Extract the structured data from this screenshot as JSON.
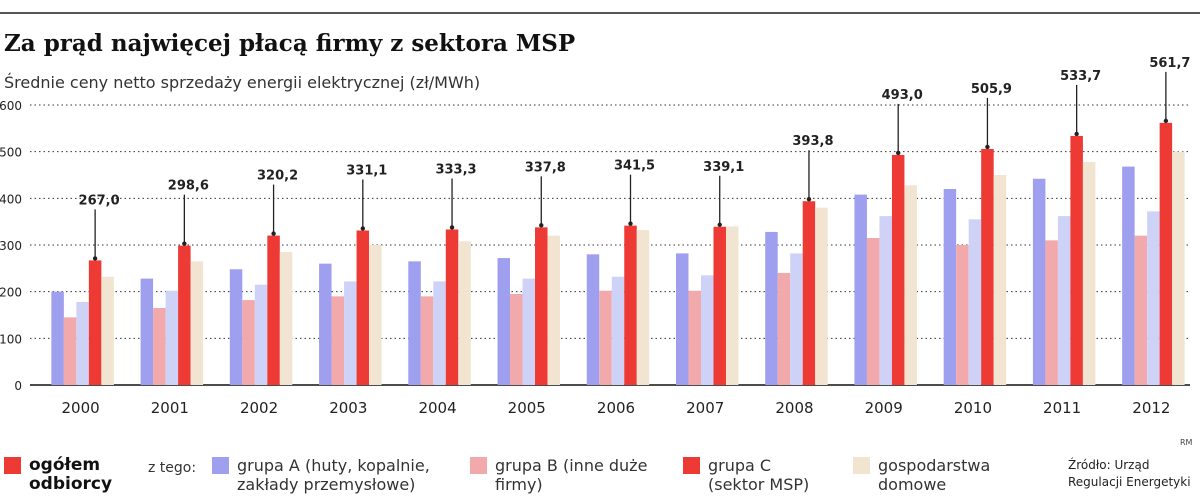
{
  "header": {
    "title": "Za prąd najwięcej płacą firmy z sektora MSP",
    "subtitle": "Średnie ceny netto sprzedaży energii elektrycznej (zł/MWh)"
  },
  "chart_data": {
    "type": "bar",
    "categories": [
      "2000",
      "2001",
      "2002",
      "2003",
      "2004",
      "2005",
      "2006",
      "2007",
      "2008",
      "2009",
      "2010",
      "2011",
      "2012"
    ],
    "yticks": [
      "0",
      "100",
      "200",
      "300",
      "400",
      "500",
      "600"
    ],
    "ylim": [
      0,
      600
    ],
    "grid": true,
    "series": [
      {
        "key": "ogolem",
        "color": "#9f9ff0",
        "values": [
          200,
          228,
          248,
          260,
          265,
          272,
          280,
          282,
          328,
          408,
          420,
          442,
          468
        ]
      },
      {
        "key": "grupaB",
        "color": "#f2a9ac",
        "values": [
          145,
          165,
          182,
          190,
          190,
          195,
          202,
          202,
          240,
          315,
          300,
          310,
          320
        ]
      },
      {
        "key": "grupaA",
        "color": "#cfd2f7",
        "values": [
          178,
          202,
          215,
          222,
          222,
          228,
          232,
          235,
          282,
          362,
          355,
          362,
          372
        ]
      },
      {
        "key": "grupaC",
        "color": "#ee3a34",
        "values": [
          267.0,
          298.6,
          320.2,
          331.1,
          333.3,
          337.8,
          341.5,
          339.1,
          393.8,
          493.0,
          505.9,
          533.7,
          561.7
        ]
      },
      {
        "key": "gospodarstwa",
        "color": "#f1e5d2",
        "values": [
          232,
          265,
          285,
          300,
          308,
          320,
          332,
          340,
          380,
          428,
          450,
          478,
          500
        ]
      }
    ],
    "labels": [
      "267,0",
      "298,6",
      "320,2",
      "331,1",
      "333,3",
      "337,8",
      "341,5",
      "339,1",
      "393,8",
      "493,0",
      "505,9",
      "533,7",
      "561,7"
    ]
  },
  "legend": {
    "main": {
      "label": "ogółem odbiorcy",
      "color": "#ee3a34"
    },
    "z_tego": "z tego:",
    "items": [
      {
        "label": "grupa A (huty, kopalnie, zakłady przemysłowe)",
        "color": "#9f9ff0"
      },
      {
        "label": "grupa B (inne duże firmy)",
        "color": "#f2a9ac"
      },
      {
        "label": "grupa C (sektor MSP)",
        "color": "#ee3a34"
      },
      {
        "label": "gospodarstwa domowe",
        "color": "#f1e5d2"
      }
    ]
  },
  "source": {
    "line1": "Źródło: Urząd",
    "line2": "Regulacji Energetyki"
  },
  "credit": "RM"
}
